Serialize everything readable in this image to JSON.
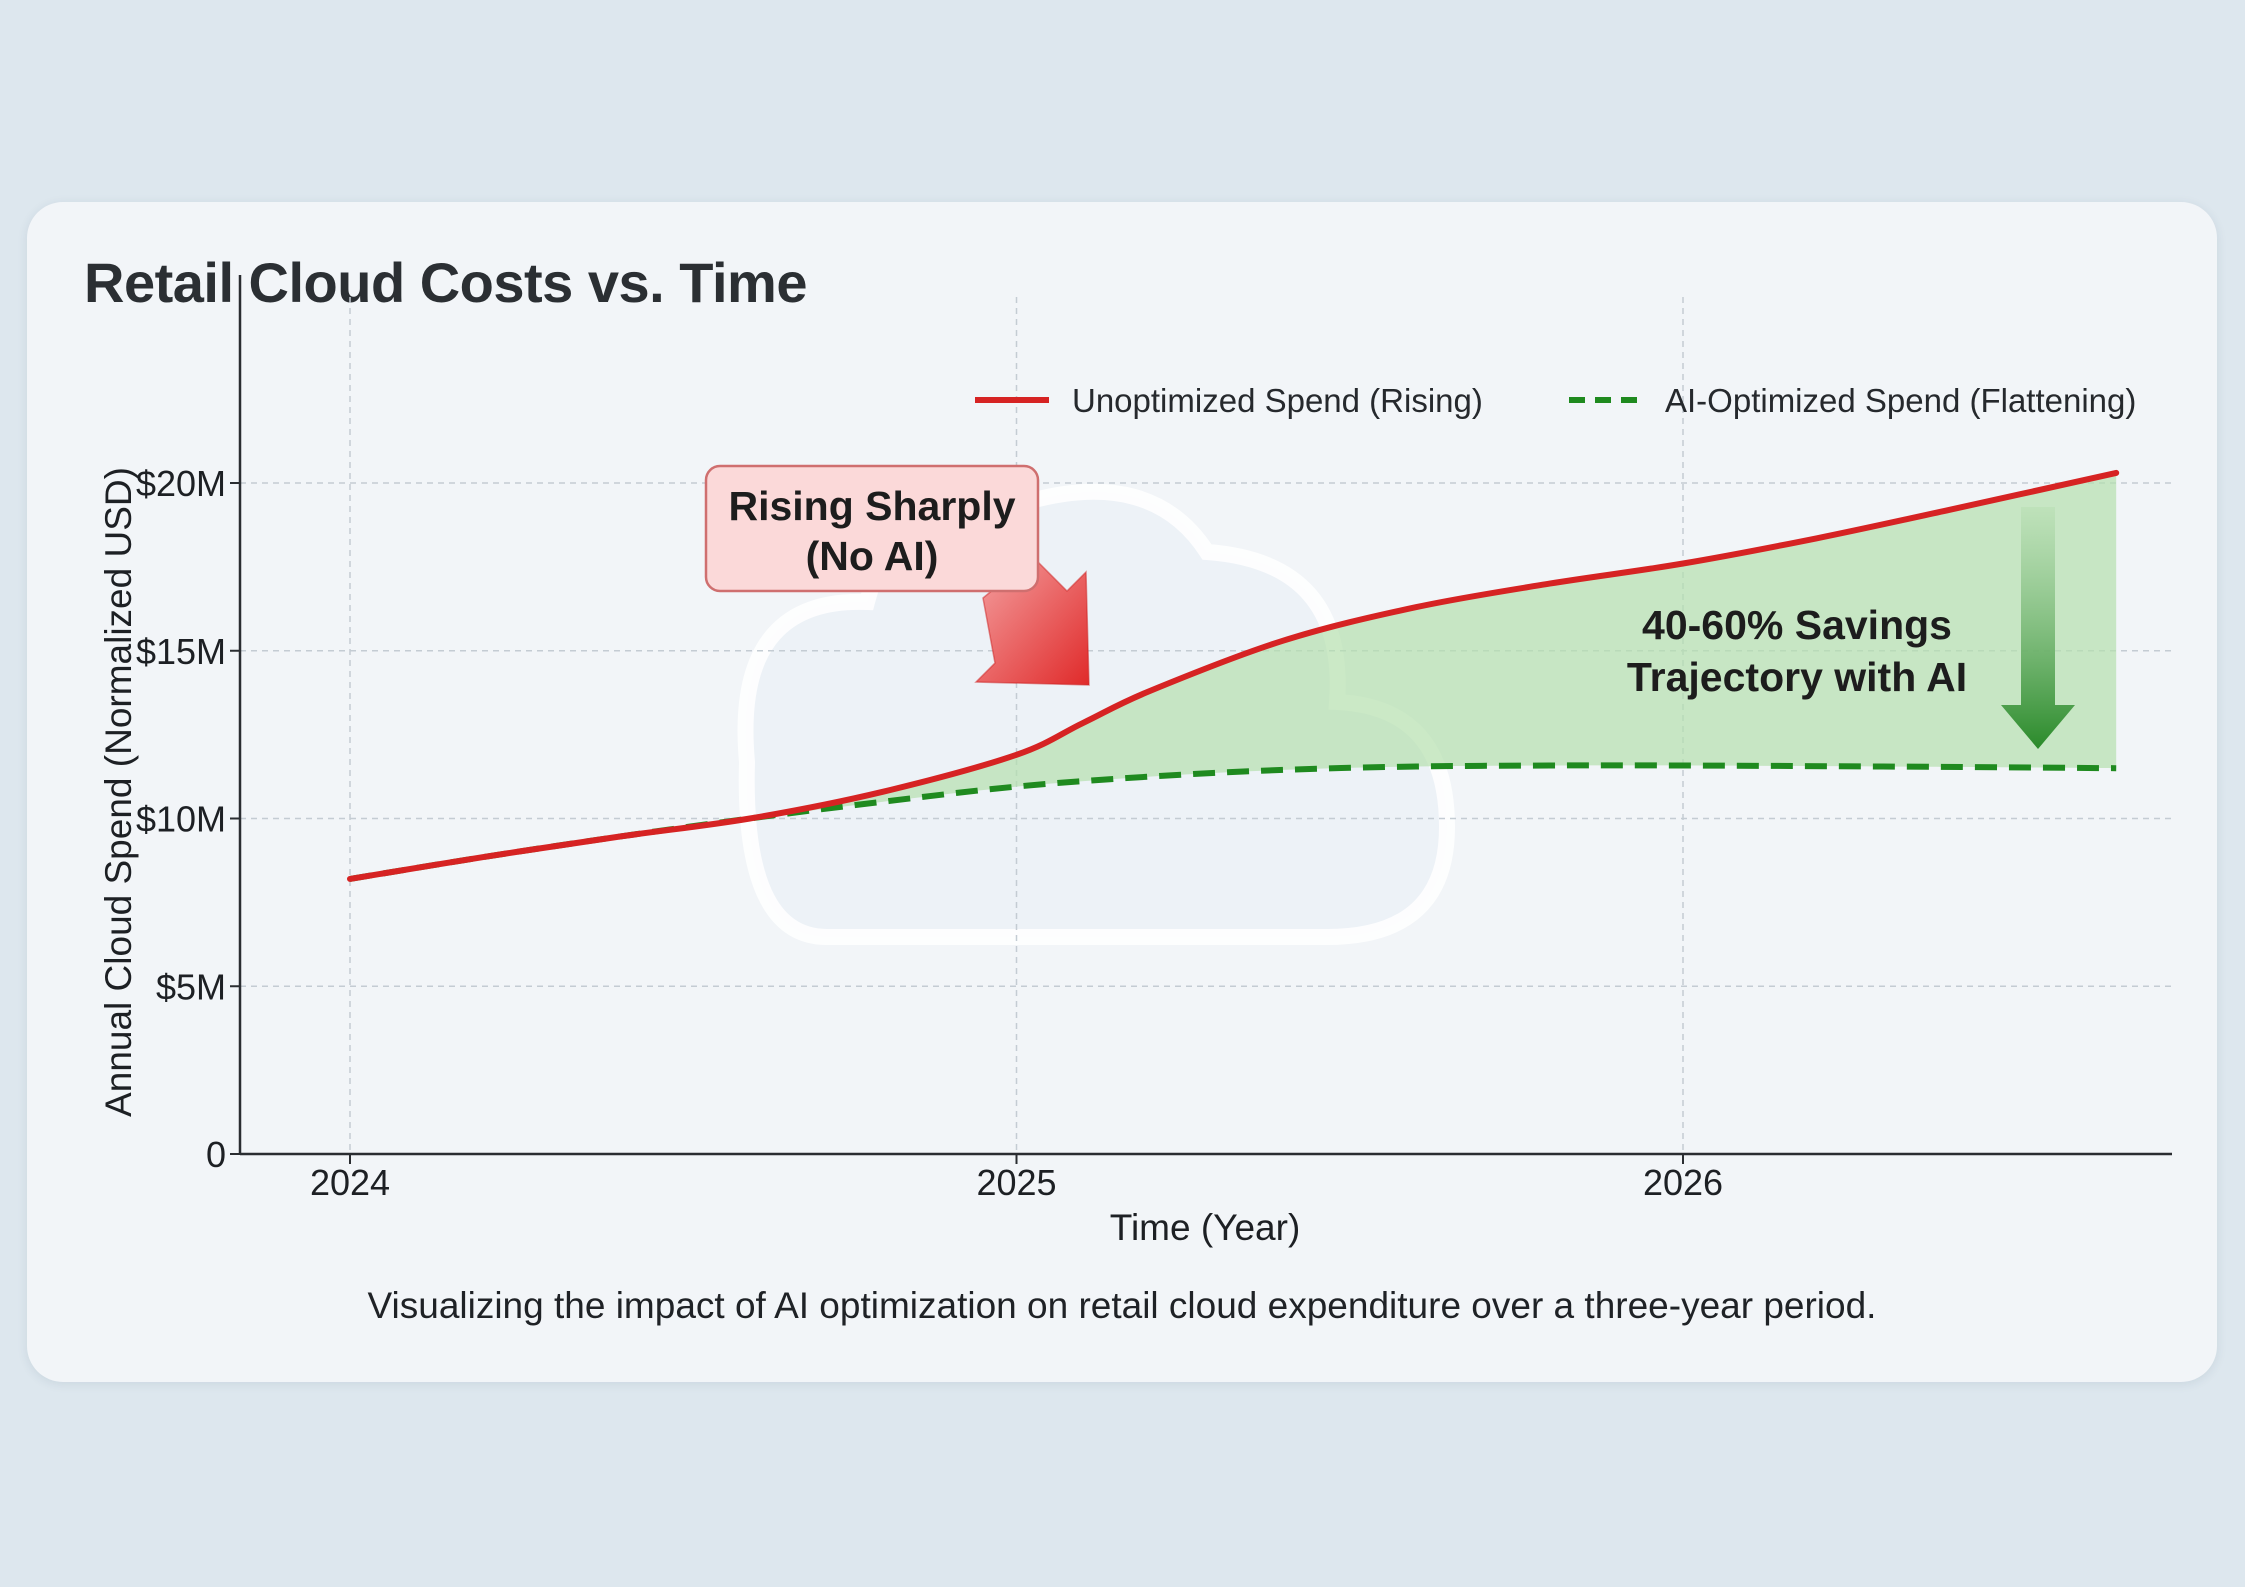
{
  "card": {
    "title": "Retail Cloud Costs vs. Time",
    "caption": "Visualizing the impact of AI optimization on retail cloud expenditure over a three-year period."
  },
  "chart_data": {
    "type": "line",
    "xlabel": "Time (Year)",
    "ylabel": "Annual Cloud Spend (Normalized USD)",
    "xlim": [
      2024,
      2026.7
    ],
    "ylim": [
      0,
      21
    ],
    "x_ticks": [
      {
        "value": 2024,
        "label": "2024"
      },
      {
        "value": 2025,
        "label": "2025"
      },
      {
        "value": 2026,
        "label": "2026"
      }
    ],
    "y_ticks": [
      {
        "value": 0,
        "label": "0"
      },
      {
        "value": 5,
        "label": "$5M"
      },
      {
        "value": 10,
        "label": "$10M"
      },
      {
        "value": 15,
        "label": "$15M"
      },
      {
        "value": 20,
        "label": "$20M"
      }
    ],
    "grid": true,
    "legend_position": "top-right",
    "series": [
      {
        "name": "Unoptimized Spend (Rising)",
        "color": "#d62323",
        "style": "solid",
        "points": [
          [
            2024,
            8.2
          ],
          [
            2024.2,
            8.85
          ],
          [
            2024.4,
            9.45
          ],
          [
            2024.6,
            10.0
          ],
          [
            2024.8,
            10.8
          ],
          [
            2025,
            11.9
          ],
          [
            2025.1,
            12.85
          ],
          [
            2025.2,
            13.8
          ],
          [
            2025.4,
            15.3
          ],
          [
            2025.6,
            16.3
          ],
          [
            2025.8,
            17.0
          ],
          [
            2026,
            17.6
          ],
          [
            2026.2,
            18.35
          ],
          [
            2026.4,
            19.2
          ],
          [
            2026.65,
            20.3
          ]
        ]
      },
      {
        "name": "AI-Optimized Spend (Flattening)",
        "color": "#1f8a1f",
        "style": "dashed",
        "points": [
          [
            2024,
            8.2
          ],
          [
            2024.2,
            8.85
          ],
          [
            2024.4,
            9.45
          ],
          [
            2024.6,
            10.0
          ],
          [
            2024.8,
            10.5
          ],
          [
            2025,
            10.95
          ],
          [
            2025.2,
            11.25
          ],
          [
            2025.4,
            11.45
          ],
          [
            2025.6,
            11.55
          ],
          [
            2025.8,
            11.58
          ],
          [
            2026,
            11.58
          ],
          [
            2026.3,
            11.55
          ],
          [
            2026.65,
            11.5
          ]
        ]
      }
    ],
    "annotations": [
      {
        "id": "rising",
        "lines": [
          "Rising Sharply",
          "(No AI)"
        ],
        "box_fill": "#fbd9d9",
        "box_stroke": "#cf6f6f",
        "arrow_color": "#e33a3a"
      },
      {
        "id": "savings",
        "lines": [
          "40-60% Savings",
          "Trajectory with AI"
        ],
        "fill_color": "#b5e0ae",
        "arrow_color": "#2e8b2e"
      }
    ]
  },
  "colors": {
    "page_background": "#dde7ee",
    "card_background": "#f2f5f8",
    "title": "#2b2f33"
  }
}
